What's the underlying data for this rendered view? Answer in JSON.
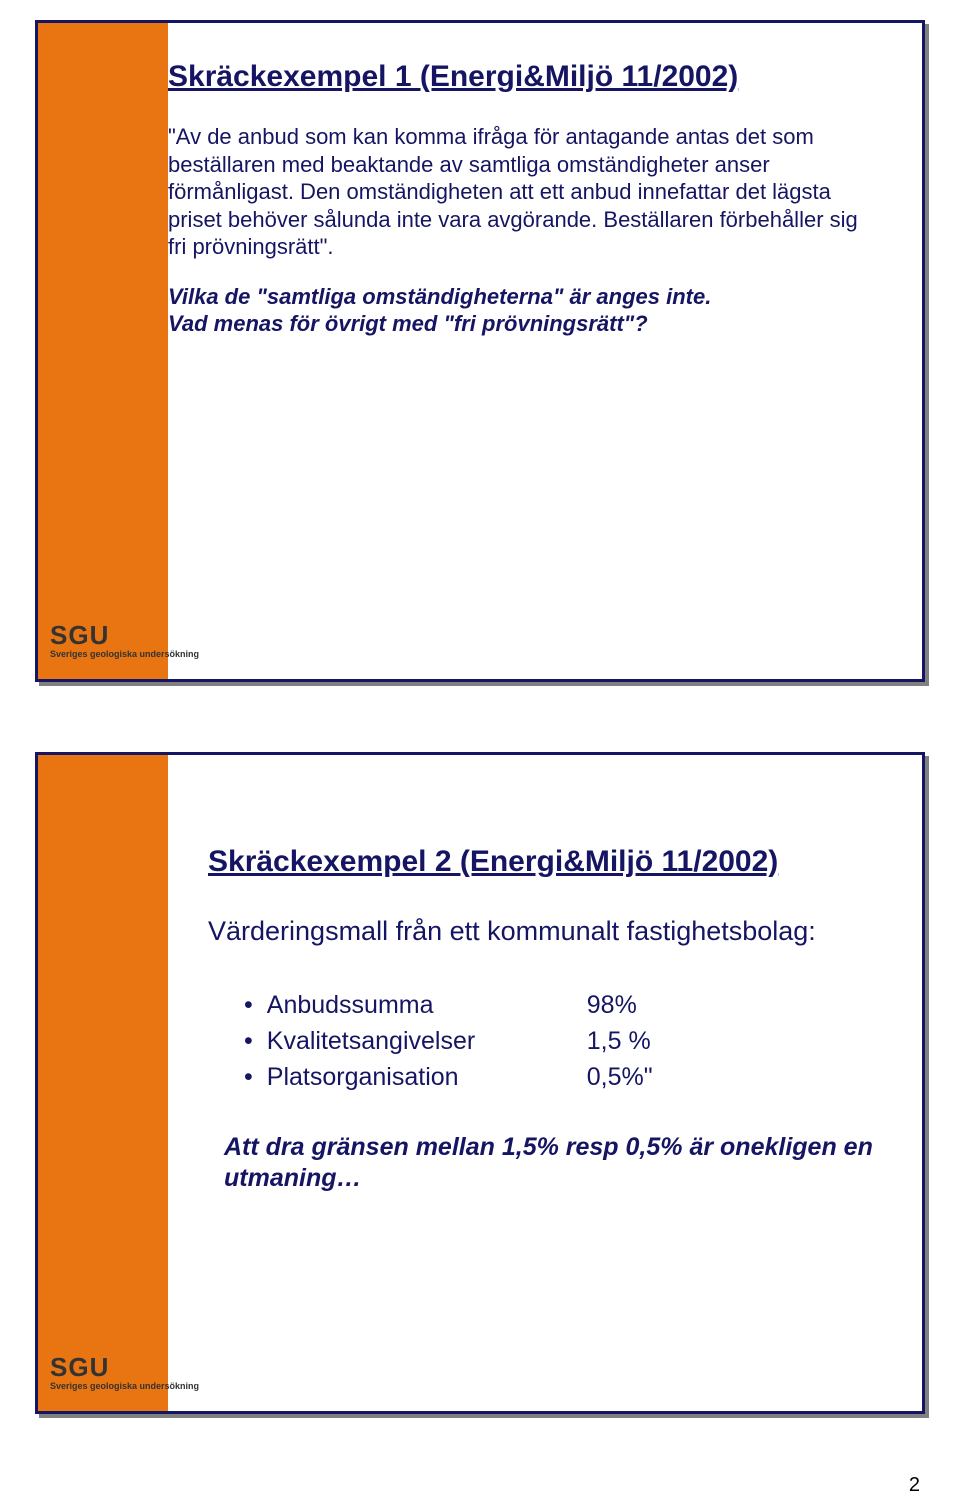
{
  "colors": {
    "frame": "#151563",
    "sidebar": "#e87511",
    "text": "#151563",
    "shadow": "#808080",
    "background": "#ffffff"
  },
  "slide1": {
    "title": "Skräckexempel 1 (Energi&Miljö 11/2002)",
    "quote": "\"Av de anbud som kan komma ifråga för antagande antas det som beställaren med beaktande av samtliga omständigheter anser förmånligast. Den omständigheten att ett anbud innefattar det lägsta priset behöver sålunda inte vara avgörande. Beställaren förbehåller sig fri prövningsrätt\".",
    "comment1": "Vilka de \"samtliga omständigheterna\" är anges inte.",
    "comment2": "Vad menas för övrigt med \"fri prövningsrätt\"?"
  },
  "slide2": {
    "title": "Skräckexempel 2 (Energi&Miljö 11/2002)",
    "subtitle": "Värderingsmall från ett kommunalt fastighetsbolag:",
    "items": [
      {
        "label": "Anbudssumma",
        "value": "98%"
      },
      {
        "label": "Kvalitetsangivelser",
        "value": "1,5 %"
      },
      {
        "label": "Platsorganisation",
        "value": "0,5%\""
      }
    ],
    "closing": "Att dra gränsen mellan 1,5% resp 0,5% är onekligen en utmaning…"
  },
  "brand": {
    "logo": "SGU",
    "sub": "Sveriges geologiska undersökning"
  },
  "page_number": "2"
}
